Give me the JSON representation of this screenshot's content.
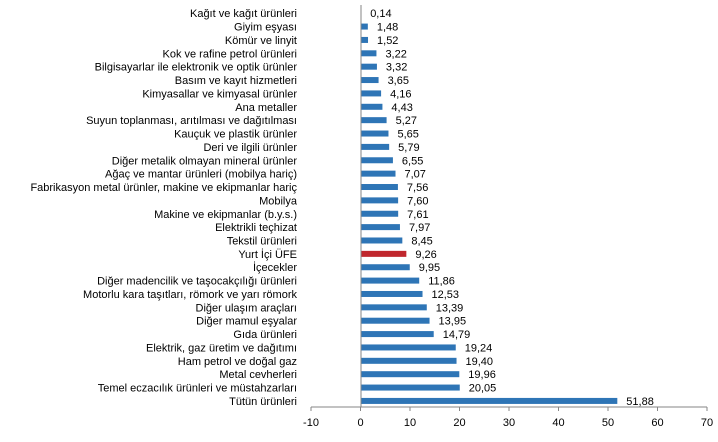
{
  "chart_data": {
    "type": "bar",
    "orientation": "horizontal",
    "categories": [
      "Kağıt ve kağıt ürünleri",
      "Giyim eşyası",
      "Kömür ve linyit",
      "Kok ve rafine petrol ürünleri",
      "Bilgisayarlar ile elektronik ve optik ürünler",
      "Basım ve kayıt hizmetleri",
      "Kimyasallar ve kimyasal ürünler",
      "Ana metaller",
      "Suyun toplanması, arıtılması ve dağıtılması",
      "Kauçuk ve plastik ürünler",
      "Deri ve ilgili ürünler",
      "Diğer metalik olmayan mineral ürünler",
      "Ağaç ve mantar ürünleri (mobilya hariç)",
      "Fabrikasyon metal ürünler, makine ve ekipmanlar hariç",
      "Mobilya",
      "Makine ve ekipmanlar (b.y.s.)",
      "Elektrikli teçhizat",
      "Tekstil ürünleri",
      "Yurt İçi ÜFE",
      "İçecekler",
      "Diğer madencilik ve taşocakçılığı ürünleri",
      "Motorlu kara taşıtları, römork ve yarı römork",
      "Diğer ulaşım araçları",
      "Diğer mamul eşyalar",
      "Gıda ürünleri",
      "Elektrik, gaz üretim ve dağıtımı",
      "Ham petrol ve doğal gaz",
      "Metal cevherleri",
      "Temel eczacılık ürünleri ve müstahzarları",
      "Tütün ürünleri"
    ],
    "values": [
      0.14,
      1.48,
      1.52,
      3.22,
      3.32,
      3.65,
      4.16,
      4.43,
      5.27,
      5.65,
      5.79,
      6.55,
      7.07,
      7.56,
      7.6,
      7.61,
      7.97,
      8.45,
      9.26,
      9.95,
      11.86,
      12.53,
      13.39,
      13.95,
      14.79,
      19.24,
      19.4,
      19.96,
      20.05,
      51.88
    ],
    "value_labels": [
      "0,14",
      "1,48",
      "1,52",
      "3,22",
      "3,32",
      "3,65",
      "4,16",
      "4,43",
      "5,27",
      "5,65",
      "5,79",
      "6,55",
      "7,07",
      "7,56",
      "7,60",
      "7,61",
      "7,97",
      "8,45",
      "9,26",
      "9,95",
      "11,86",
      "12,53",
      "13,39",
      "13,95",
      "14,79",
      "19,24",
      "19,40",
      "19,96",
      "20,05",
      "51,88"
    ],
    "highlight_index": 18,
    "colors": {
      "bar": "#2E75B6",
      "highlight": "#C0272D",
      "axis": "#868686"
    },
    "xlim": [
      -10,
      70
    ],
    "xticks": [
      -10,
      0,
      10,
      20,
      30,
      40,
      50,
      60,
      70
    ],
    "title": "",
    "xlabel": "",
    "ylabel": "",
    "grid": false,
    "legend": "none"
  }
}
